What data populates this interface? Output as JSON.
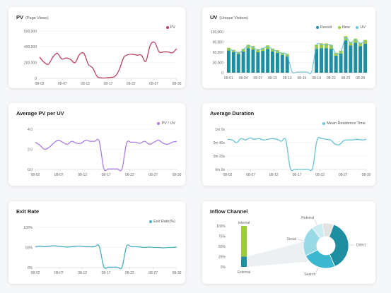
{
  "colors": {
    "pv": "#b8435f",
    "visit": "#1f8ea1",
    "new": "#9ccb3c",
    "uv_line": "#6dc2d4",
    "avg": "#a97ce0",
    "duration": "#66c3d4",
    "exit": "#4aaec0",
    "channel_dark": "#1f8ea1",
    "channel_mid": "#3bb7cf",
    "channel_light": "#9ad9e6",
    "channel_lighter": "#cdecf2",
    "channel_grey": "#e3e3e3",
    "internal": "#9ccb3c"
  },
  "cards": {
    "pv": {
      "title": "PV",
      "subtitle": "(Page Views)",
      "legend": "PV"
    },
    "uv": {
      "title": "UV",
      "subtitle": "(Unique Visitors)",
      "legend": [
        "Revisit",
        "New",
        "UV"
      ]
    },
    "avg": {
      "title": "Average PV per UV",
      "legend": "PV / UV"
    },
    "duration": {
      "title": "Average Duration",
      "legend": "Mean Residence Time"
    },
    "exit": {
      "title": "Exit Rate",
      "legend": "Exit Rate(%)"
    },
    "inflow": {
      "title": "Inflow Channel"
    }
  },
  "chart_data": [
    {
      "type": "line",
      "title": "PV (Page Views)",
      "series": [
        {
          "name": "PV",
          "values": [
            225000,
            170000,
            150000,
            225000,
            265000,
            205000,
            215000,
            200000,
            165000,
            250000,
            265000,
            150000,
            110000,
            20000,
            5000,
            5000,
            10000,
            20000,
            90000,
            220000,
            250000,
            255000,
            245000,
            245000,
            180000,
            350000,
            380000,
            280000,
            280000,
            280000,
            270000,
            315000
          ]
        }
      ],
      "x": [
        "08-01",
        "08-02",
        "08-03",
        "08-04",
        "08-05",
        "08-06",
        "08-07",
        "08-08",
        "08-09",
        "08-10",
        "08-11",
        "08-12",
        "08-13",
        "08-14",
        "08-15",
        "08-16",
        "08-17",
        "08-18",
        "08-19",
        "08-20",
        "08-21",
        "08-22",
        "08-23",
        "08-24",
        "08-25",
        "08-26",
        "08-27",
        "08-28",
        "08-29",
        "08-30",
        "08-31",
        "09-01"
      ],
      "xticks": [
        "08-02",
        "08-07",
        "08-12",
        "08-17",
        "08-22",
        "08-27",
        "08-30"
      ],
      "yticks": [
        "0",
        "200,000",
        "400,000",
        "500,000"
      ],
      "ylim": [
        0,
        500000
      ]
    },
    {
      "type": "bar",
      "title": "UV (Unique Visitors)",
      "categories": [
        "08-01",
        "08-02",
        "08-03",
        "08-04",
        "08-05",
        "08-06",
        "08-07",
        "08-08",
        "08-09",
        "08-10",
        "08-11",
        "08-12",
        "08-13",
        "08-14",
        "08-15",
        "08-16",
        "08-17",
        "08-18",
        "08-19",
        "08-20",
        "08-21",
        "08-22",
        "08-23",
        "08-24",
        "08-25",
        "08-26",
        "08-27",
        "08-28",
        "08-29"
      ],
      "series": [
        {
          "name": "Revisit",
          "values": [
            65000,
            60000,
            55000,
            62000,
            72000,
            68000,
            60000,
            64000,
            70000,
            62000,
            58000,
            52000,
            48000,
            0,
            0,
            0,
            0,
            0,
            70000,
            72000,
            72000,
            70000,
            50000,
            56000,
            95000,
            80000,
            88000,
            78000,
            85000
          ]
        },
        {
          "name": "New",
          "values": [
            8000,
            7000,
            6000,
            8000,
            10000,
            10000,
            9000,
            9000,
            10000,
            9000,
            8000,
            7000,
            7000,
            0,
            0,
            0,
            0,
            0,
            12000,
            14000,
            14000,
            12000,
            8000,
            9000,
            12000,
            10000,
            12000,
            10000,
            11000
          ]
        }
      ],
      "uv_line": [
        70000,
        64000,
        58000,
        67000,
        79000,
        74000,
        66000,
        71000,
        77000,
        68000,
        62000,
        56000,
        52000,
        3000,
        2000,
        2000,
        2000,
        3000,
        80000,
        82000,
        81000,
        80000,
        56000,
        62000,
        103000,
        87000,
        97000,
        85000,
        93000
      ],
      "xticks": [
        "08-01",
        "08-04",
        "08-07",
        "08-10",
        "08-13",
        "08-16",
        "08-19",
        "08-22",
        "08-25",
        "08-28"
      ],
      "yticks": [
        "0",
        "30,000",
        "60,000",
        "90,000",
        "120,000"
      ],
      "ylim": [
        0,
        120000
      ]
    },
    {
      "type": "line",
      "title": "Average PV per UV",
      "series": [
        {
          "name": "PV / UV",
          "values": [
            2.7,
            2.4,
            2.0,
            2.2,
            2.6,
            2.9,
            2.7,
            2.5,
            2.8,
            2.6,
            2.6,
            2.9,
            2.8,
            2.8,
            2.8,
            0.1,
            0.05,
            0.05,
            0.05,
            0.05,
            2.6,
            2.7,
            2.7,
            2.6,
            2.8,
            2.5,
            2.7,
            2.9,
            2.6,
            2.5,
            2.7,
            2.8
          ]
        }
      ],
      "xticks": [
        "08-02",
        "08-07",
        "08-12",
        "08-17",
        "08-22",
        "08-27",
        "08-30"
      ],
      "yticks": [
        "0.0",
        "2.0",
        "4.0"
      ],
      "ylim": [
        0,
        4
      ]
    },
    {
      "type": "line",
      "title": "Average Duration",
      "series": [
        {
          "name": "Mean Residence Time",
          "values": [
            45,
            44,
            40,
            46,
            44,
            47,
            45,
            46,
            44,
            45,
            46,
            45,
            42,
            44,
            2,
            0,
            0,
            0,
            0,
            2,
            44,
            46,
            45,
            44,
            38,
            37,
            43,
            44,
            44,
            45,
            44,
            45
          ]
        }
      ],
      "xticks": [
        "08-02",
        "08-07",
        "08-12",
        "08-17",
        "08-22",
        "08-27",
        "08-30"
      ],
      "yticks": [
        "0m 0s",
        "0m 20s",
        "0m 40s",
        "1m 0s"
      ],
      "ylim": [
        0,
        60
      ]
    },
    {
      "type": "line",
      "title": "Exit Rate",
      "series": [
        {
          "name": "Exit Rate(%)",
          "values": [
            52,
            53,
            52,
            53,
            54,
            53,
            52,
            51,
            52,
            53,
            53,
            52,
            52,
            52,
            53,
            2,
            1,
            1,
            1,
            1,
            53,
            52,
            52,
            51,
            50,
            51,
            50,
            50,
            49,
            50,
            50,
            51
          ]
        }
      ],
      "xticks": [
        "08-02",
        "08-07",
        "08-12",
        "08-17",
        "08-22",
        "08-27",
        "08-30"
      ],
      "yticks": [
        "0%",
        "50%",
        "100%"
      ],
      "ylim": [
        0,
        100
      ]
    },
    {
      "type": "pie",
      "title": "Inflow Channel",
      "bar": {
        "internal_label": "Internal",
        "external_label": "External",
        "internal_pct": 75,
        "external_pct": 25,
        "yticks": [
          "0%",
          "25%",
          "50%",
          "75%",
          "100%"
        ]
      },
      "slices": [
        {
          "label": "Direct",
          "value": 38
        },
        {
          "label": "Search",
          "value": 24
        },
        {
          "label": "Social",
          "value": 22
        },
        {
          "label": "Referral",
          "value": 8
        },
        {
          "label": "",
          "value": 8
        }
      ]
    }
  ]
}
